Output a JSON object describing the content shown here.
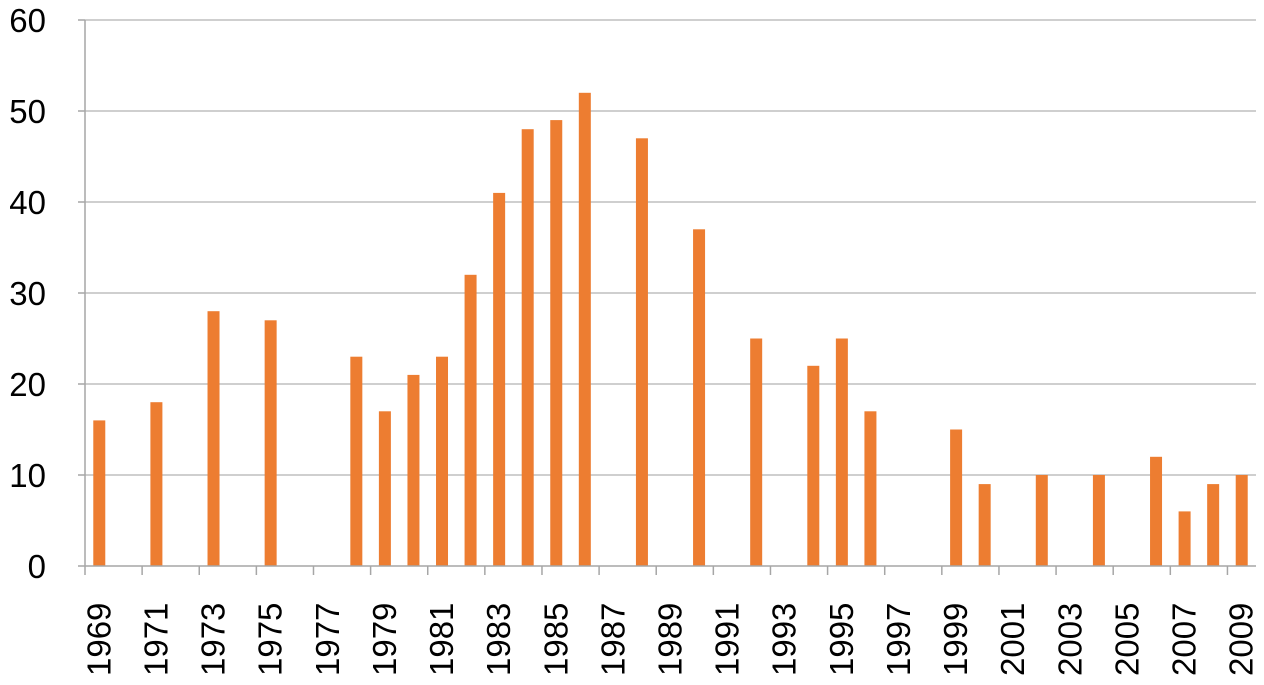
{
  "chart_data": {
    "type": "bar",
    "title": "",
    "xlabel": "",
    "ylabel": "",
    "ylim": [
      0,
      60
    ],
    "yticks": [
      0,
      10,
      20,
      30,
      40,
      50,
      60
    ],
    "grid": true,
    "legend": "none",
    "bar_color": "#ED7D31",
    "grid_color": "#BFBFBF",
    "axis_color": "#A6A6A6",
    "categories": [
      "1969",
      "1970",
      "1971",
      "1972",
      "1973",
      "1974",
      "1975",
      "1976",
      "1977",
      "1978",
      "1979",
      "1980",
      "1981",
      "1982",
      "1983",
      "1984",
      "1985",
      "1986",
      "1987",
      "1988",
      "1989",
      "1990",
      "1991",
      "1992",
      "1993",
      "1994",
      "1995",
      "1996",
      "1997",
      "1998",
      "1999",
      "2000",
      "2001",
      "2002",
      "2003",
      "2004",
      "2005",
      "2006",
      "2007",
      "2008",
      "2009"
    ],
    "x_tick_labels": [
      "1969",
      "1971",
      "1973",
      "1975",
      "1977",
      "1979",
      "1981",
      "1983",
      "1985",
      "1987",
      "1989",
      "1991",
      "1993",
      "1995",
      "1997",
      "1999",
      "2001",
      "2003",
      "2005",
      "2007",
      "2009"
    ],
    "values": [
      16,
      0,
      18,
      0,
      28,
      0,
      27,
      0,
      0,
      23,
      17,
      21,
      23,
      32,
      41,
      48,
      49,
      52,
      0,
      47,
      0,
      37,
      0,
      25,
      0,
      22,
      25,
      17,
      0,
      0,
      15,
      9,
      0,
      10,
      0,
      10,
      0,
      12,
      6,
      9,
      10
    ]
  }
}
